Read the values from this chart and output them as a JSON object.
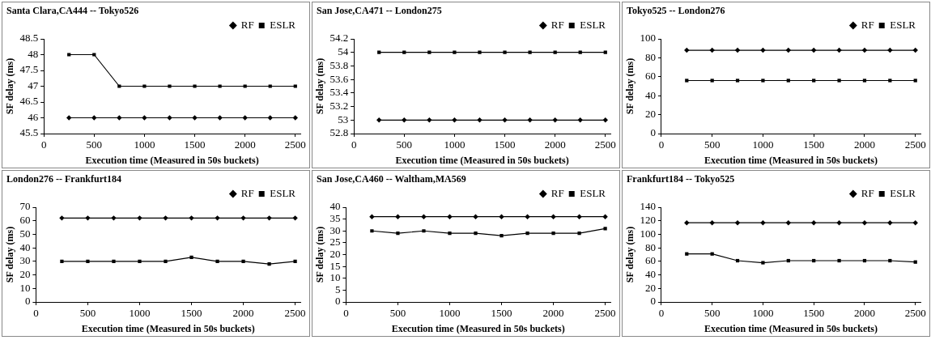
{
  "chart_data": [
    {
      "type": "line",
      "title": "Santa Clara,CA444 -- Tokyo526",
      "xlabel": "Execution time (Measured in 50s buckets)",
      "ylabel": "SF delay (ms)",
      "x": [
        250,
        500,
        750,
        1000,
        1250,
        1500,
        1750,
        2000,
        2250,
        2500
      ],
      "xlim": [
        0,
        2550
      ],
      "xticks": [
        0,
        500,
        1000,
        1500,
        2000,
        2500
      ],
      "ylim": [
        45.5,
        48.5
      ],
      "yticks": [
        45.5,
        46,
        46.5,
        47,
        47.5,
        48,
        48.5
      ],
      "grid": false,
      "legend": "top right",
      "line_style": "solid",
      "series": [
        {
          "name": "RF",
          "color": "#000000",
          "marker": "diamond",
          "values": [
            46,
            46,
            46,
            46,
            46,
            46,
            46,
            46,
            46,
            46
          ]
        },
        {
          "name": "ESLR",
          "color": "#000000",
          "marker": "square",
          "values": [
            48,
            48,
            47,
            47,
            47,
            47,
            47,
            47,
            47,
            47
          ]
        }
      ]
    },
    {
      "type": "line",
      "title": "San Jose,CA471 -- London275",
      "xlabel": "Execution time (Measured in 50s buckets)",
      "ylabel": "SF delay (ms)",
      "x": [
        250,
        500,
        750,
        1000,
        1250,
        1500,
        1750,
        2000,
        2250,
        2500
      ],
      "xlim": [
        0,
        2550
      ],
      "xticks": [
        0,
        500,
        1000,
        1500,
        2000,
        2500
      ],
      "ylim": [
        52.8,
        54.2
      ],
      "yticks": [
        52.8,
        53,
        53.2,
        53.4,
        53.6,
        53.8,
        54,
        54.2
      ],
      "grid": false,
      "legend": "top right",
      "line_style": "solid",
      "series": [
        {
          "name": "RF",
          "color": "#000000",
          "marker": "diamond",
          "values": [
            53,
            53,
            53,
            53,
            53,
            53,
            53,
            53,
            53,
            53
          ]
        },
        {
          "name": "ESLR",
          "color": "#000000",
          "marker": "square",
          "values": [
            54,
            54,
            54,
            54,
            54,
            54,
            54,
            54,
            54,
            54
          ]
        }
      ]
    },
    {
      "type": "line",
      "title": "Tokyo525 -- London276",
      "xlabel": "Execution time (Measured in 50s buckets)",
      "ylabel": "SF delay (ms)",
      "x": [
        250,
        500,
        750,
        1000,
        1250,
        1500,
        1750,
        2000,
        2250,
        2500
      ],
      "xlim": [
        0,
        2550
      ],
      "xticks": [
        0,
        500,
        1000,
        1500,
        2000,
        2500
      ],
      "ylim": [
        0,
        100
      ],
      "yticks": [
        0,
        20,
        40,
        60,
        80,
        100
      ],
      "grid": false,
      "legend": "top right",
      "line_style": "solid",
      "series": [
        {
          "name": "RF",
          "color": "#000000",
          "marker": "diamond",
          "values": [
            88,
            88,
            88,
            88,
            88,
            88,
            88,
            88,
            88,
            88
          ]
        },
        {
          "name": "ESLR",
          "color": "#000000",
          "marker": "square",
          "values": [
            56,
            56,
            56,
            56,
            56,
            56,
            56,
            56,
            56,
            56
          ]
        }
      ]
    },
    {
      "type": "line",
      "title": "London276 -- Frankfurt184",
      "xlabel": "Execution time (Measured in 50s buckets)",
      "ylabel": "SF delay (ms)",
      "x": [
        250,
        500,
        750,
        1000,
        1250,
        1500,
        1750,
        2000,
        2250,
        2500
      ],
      "xlim": [
        0,
        2550
      ],
      "xticks": [
        0,
        500,
        1000,
        1500,
        2000,
        2500
      ],
      "ylim": [
        0,
        70
      ],
      "yticks": [
        0,
        10,
        20,
        30,
        40,
        50,
        60,
        70
      ],
      "grid": false,
      "legend": "top right",
      "line_style": "solid",
      "series": [
        {
          "name": "RF",
          "color": "#000000",
          "marker": "diamond",
          "values": [
            62,
            62,
            62,
            62,
            62,
            62,
            62,
            62,
            62,
            62
          ]
        },
        {
          "name": "ESLR",
          "color": "#000000",
          "marker": "square",
          "values": [
            30,
            30,
            30,
            30,
            30,
            33,
            30,
            30,
            28,
            30
          ]
        }
      ]
    },
    {
      "type": "line",
      "title": "San Jose,CA460 -- Waltham,MA569",
      "xlabel": "Execution time (Measured in 50s buckets)",
      "ylabel": "SF delay (ms)",
      "x": [
        250,
        500,
        750,
        1000,
        1250,
        1500,
        1750,
        2000,
        2250,
        2500
      ],
      "xlim": [
        0,
        2550
      ],
      "xticks": [
        0,
        500,
        1000,
        1500,
        2000,
        2500
      ],
      "ylim": [
        0,
        40
      ],
      "yticks": [
        0,
        5,
        10,
        15,
        20,
        25,
        30,
        35,
        40
      ],
      "grid": false,
      "legend": "top right",
      "line_style": "solid",
      "series": [
        {
          "name": "RF",
          "color": "#000000",
          "marker": "diamond",
          "values": [
            36,
            36,
            36,
            36,
            36,
            36,
            36,
            36,
            36,
            36
          ]
        },
        {
          "name": "ESLR",
          "color": "#000000",
          "marker": "square",
          "values": [
            30,
            29,
            30,
            29,
            29,
            28,
            29,
            29,
            29,
            31
          ]
        }
      ]
    },
    {
      "type": "line",
      "title": "Frankfurt184 -- Tokyo525",
      "xlabel": "Execution time (Measured in 50s buckets)",
      "ylabel": "SF delay (ms)",
      "x": [
        250,
        500,
        750,
        1000,
        1250,
        1500,
        1750,
        2000,
        2250,
        2500
      ],
      "xlim": [
        0,
        2550
      ],
      "xticks": [
        0,
        500,
        1000,
        1500,
        2000,
        2500
      ],
      "ylim": [
        0,
        140
      ],
      "yticks": [
        0,
        20,
        40,
        60,
        80,
        100,
        120,
        140
      ],
      "grid": false,
      "legend": "top right",
      "line_style": "solid",
      "series": [
        {
          "name": "RF",
          "color": "#000000",
          "marker": "diamond",
          "values": [
            117,
            117,
            117,
            117,
            117,
            117,
            117,
            117,
            117,
            117
          ]
        },
        {
          "name": "ESLR",
          "color": "#000000",
          "marker": "square",
          "values": [
            71,
            71,
            61,
            58,
            61,
            61,
            61,
            61,
            61,
            59
          ]
        }
      ]
    }
  ]
}
